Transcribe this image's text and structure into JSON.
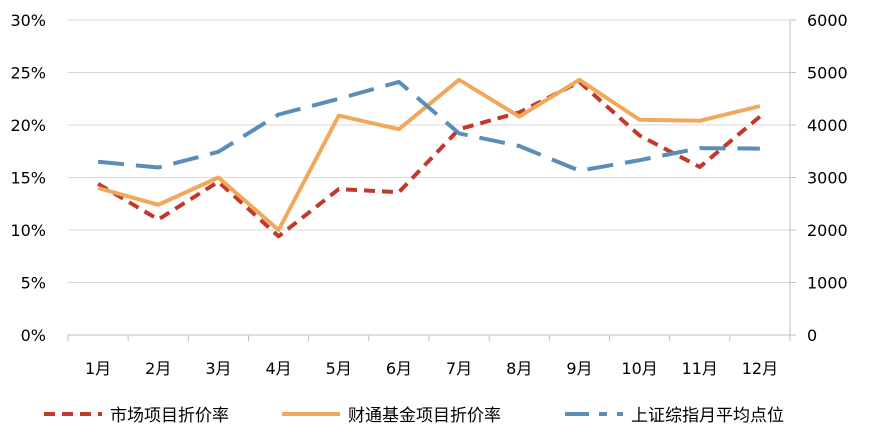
{
  "chart_data": {
    "type": "line",
    "categories": [
      "1月",
      "2月",
      "3月",
      "4月",
      "5月",
      "6月",
      "7月",
      "8月",
      "9月",
      "10月",
      "11月",
      "12月"
    ],
    "y_left": {
      "ticks": [
        "0%",
        "5%",
        "10%",
        "15%",
        "20%",
        "25%",
        "30%"
      ],
      "range": [
        0,
        30
      ]
    },
    "y_right": {
      "ticks": [
        "0",
        "1000",
        "2000",
        "3000",
        "4000",
        "5000",
        "6000"
      ],
      "range": [
        0,
        6000
      ]
    },
    "grid": true,
    "legend_position": "bottom",
    "series": [
      {
        "name": "市场项目折价率",
        "axis": "left",
        "unit": "%",
        "style": "dashed",
        "color": "#C0392B",
        "values": [
          14.4,
          11.0,
          14.6,
          9.4,
          13.9,
          13.6,
          19.6,
          21.2,
          24.1,
          19.0,
          16.0,
          20.8
        ]
      },
      {
        "name": "财通基金项目折价率",
        "axis": "left",
        "unit": "%",
        "style": "solid",
        "color": "#F0A85A",
        "values": [
          14.0,
          12.4,
          15.0,
          10.0,
          20.9,
          19.6,
          24.3,
          20.8,
          24.3,
          20.5,
          20.4,
          21.8
        ]
      },
      {
        "name": "上证综指月平均点位",
        "axis": "right",
        "unit": "",
        "style": "longdash",
        "color": "#5B8DB8",
        "values": [
          3300,
          3190,
          3490,
          4200,
          4500,
          4820,
          3840,
          3600,
          3130,
          3330,
          3560,
          3550
        ]
      }
    ]
  }
}
